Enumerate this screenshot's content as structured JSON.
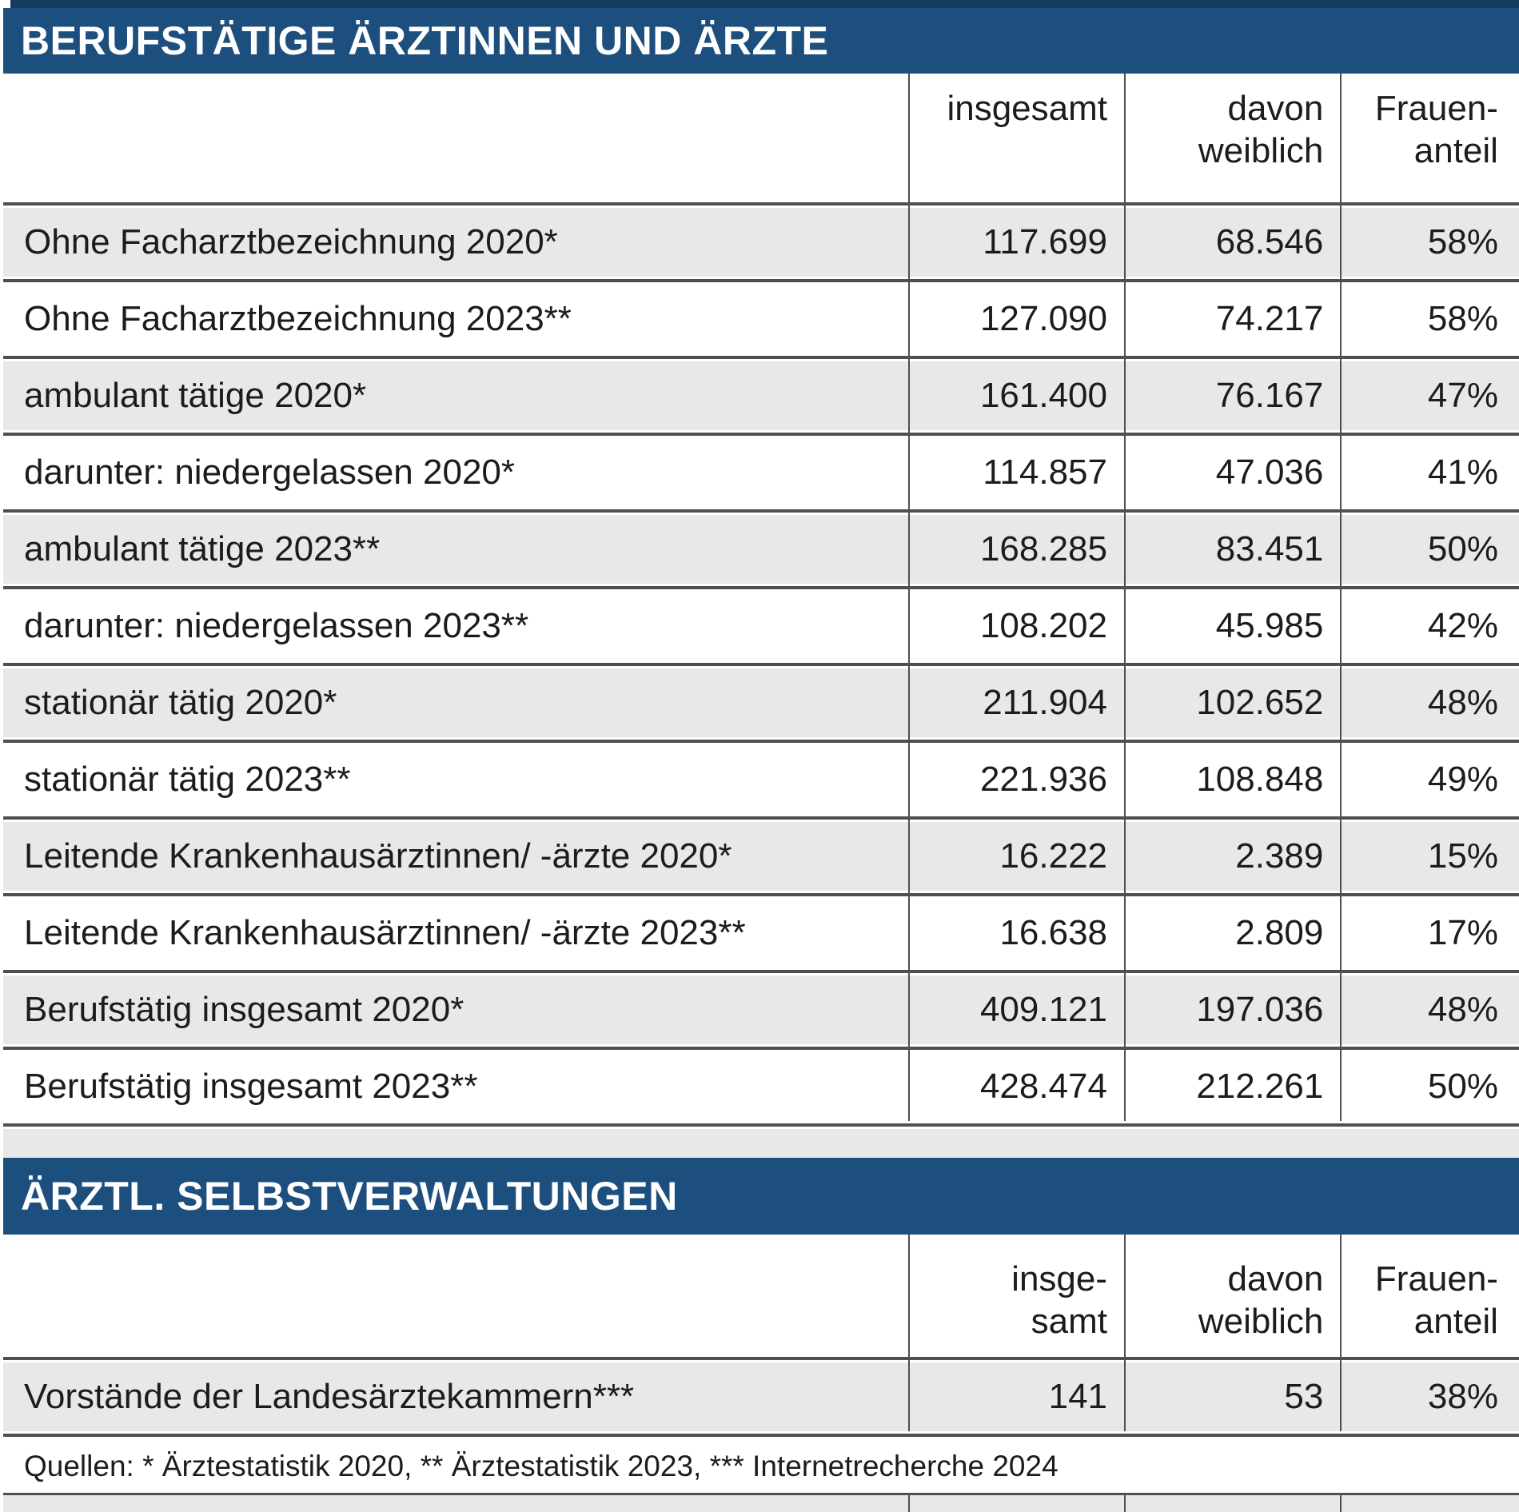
{
  "page": {
    "colors": {
      "accent_blue": "#1c4e7e",
      "top_edge_navy": "#163a5c",
      "row_gray": "#e8e8e8",
      "line_gray": "#4f4f4f",
      "text": "#1c1c1c"
    },
    "sections": [
      {
        "title": "BERUFSTÄTIGE ÄRZTINNEN UND ÄRZTE",
        "columns": {
          "label": "",
          "total": "insgesamt",
          "female": "davon\nweiblich",
          "share": "Frauen-\nanteil"
        },
        "rows": [
          {
            "label": "Ohne Facharztbezeichnung 2020*",
            "total": "117.699",
            "female": "68.546",
            "share": "58%"
          },
          {
            "label": "Ohne Facharztbezeichnung 2023**",
            "total": "127.090",
            "female": "74.217",
            "share": "58%"
          },
          {
            "label": "ambulant tätige 2020*",
            "total": "161.400",
            "female": "76.167",
            "share": "47%"
          },
          {
            "label": "darunter: niedergelassen 2020*",
            "total": "114.857",
            "female": "47.036",
            "share": "41%"
          },
          {
            "label": "ambulant tätige 2023**",
            "total": "168.285",
            "female": "83.451",
            "share": "50%"
          },
          {
            "label": "darunter: niedergelassen 2023**",
            "total": "108.202",
            "female": "45.985",
            "share": "42%"
          },
          {
            "label": "stationär tätig 2020*",
            "total": "211.904",
            "female": "102.652",
            "share": "48%"
          },
          {
            "label": "stationär tätig 2023**",
            "total": "221.936",
            "female": "108.848",
            "share": "49%"
          },
          {
            "label": "Leitende Krankenhausärztinnen/ -ärzte 2020*",
            "total": "16.222",
            "female": "2.389",
            "share": "15%"
          },
          {
            "label": "Leitende Krankenhausärztinnen/ -ärzte 2023**",
            "total": "16.638",
            "female": "2.809",
            "share": "17%"
          },
          {
            "label": "Berufstätig insgesamt 2020*",
            "total": "409.121",
            "female": "197.036",
            "share": "48%"
          },
          {
            "label": "Berufstätig insgesamt 2023**",
            "total": "428.474",
            "female": "212.261",
            "share": "50%"
          }
        ]
      },
      {
        "title": "ÄRZTL. SELBSTVERWALTUNGEN",
        "columns": {
          "label": "",
          "total": "insge-\nsamt",
          "female": "davon\nweiblich",
          "share": "Frauen-\nanteil"
        },
        "rows": [
          {
            "label": "Vorstände der Landesärztekammern***",
            "total": "141",
            "female": "53",
            "share": "38%"
          }
        ]
      }
    ],
    "footer": "Quellen: * Ärztestatistik 2020, ** Ärztestatistik 2023, *** Internetrecherche 2024"
  },
  "chart_data": [
    {
      "type": "table",
      "title": "BERUFSTÄTIGE ÄRZTINNEN UND ÄRZTE",
      "columns": [
        "",
        "insgesamt",
        "davon weiblich",
        "Frauenanteil"
      ],
      "rows": [
        [
          "Ohne Facharztbezeichnung 2020*",
          117699,
          68546,
          "58%"
        ],
        [
          "Ohne Facharztbezeichnung 2023**",
          127090,
          74217,
          "58%"
        ],
        [
          "ambulant tätige 2020*",
          161400,
          76167,
          "47%"
        ],
        [
          "darunter: niedergelassen 2020*",
          114857,
          47036,
          "41%"
        ],
        [
          "ambulant tätige 2023**",
          168285,
          83451,
          "50%"
        ],
        [
          "darunter: niedergelassen 2023**",
          108202,
          45985,
          "42%"
        ],
        [
          "stationär tätig 2020*",
          211904,
          102652,
          "48%"
        ],
        [
          "stationär tätig 2023**",
          221936,
          108848,
          "49%"
        ],
        [
          "Leitende Krankenhausärztinnen/ -ärzte 2020*",
          16222,
          2389,
          "15%"
        ],
        [
          "Leitende Krankenhausärztinnen/ -ärzte 2023**",
          16638,
          2809,
          "17%"
        ],
        [
          "Berufstätig insgesamt 2020*",
          409121,
          197036,
          "48%"
        ],
        [
          "Berufstätig insgesamt 2023**",
          428474,
          212261,
          "50%"
        ]
      ]
    },
    {
      "type": "table",
      "title": "ÄRZTL. SELBSTVERWALTUNGEN",
      "columns": [
        "",
        "insgesamt",
        "davon weiblich",
        "Frauenanteil"
      ],
      "rows": [
        [
          "Vorstände der Landesärztekammern***",
          141,
          53,
          "38%"
        ]
      ]
    }
  ]
}
